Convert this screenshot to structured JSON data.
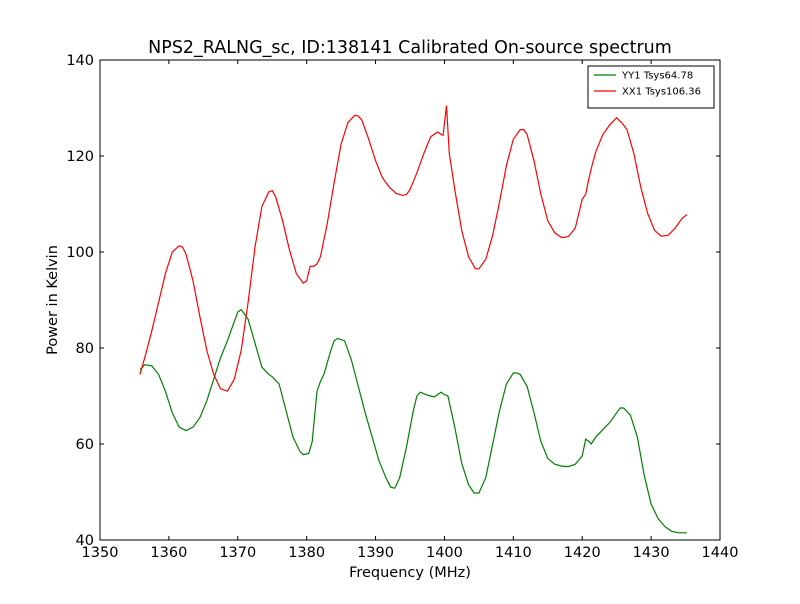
{
  "chart_data": {
    "type": "line",
    "title": "NPS2_RALNG_sc, ID:138141 Calibrated On-source spectrum",
    "xlabel": "Frequency (MHz)",
    "ylabel": "Power in Kelvin",
    "xlim": [
      1350,
      1440
    ],
    "ylim": [
      40,
      140
    ],
    "xticks": [
      1350,
      1360,
      1370,
      1380,
      1390,
      1400,
      1410,
      1420,
      1430,
      1440
    ],
    "yticks": [
      40,
      60,
      80,
      100,
      120,
      140
    ],
    "grid": false,
    "legend_position": "top-right",
    "series": [
      {
        "name": "YY1 Tsys64.78",
        "color": "#008000",
        "x": [
          1355.8,
          1356.5,
          1357.5,
          1358.5,
          1359.5,
          1360.5,
          1361.5,
          1362.5,
          1363.5,
          1364.5,
          1365.5,
          1366.5,
          1367.5,
          1368.5,
          1369.5,
          1370.0,
          1370.5,
          1371.5,
          1372.5,
          1373.5,
          1374.5,
          1375.0,
          1376.0,
          1377.0,
          1378.0,
          1379.0,
          1379.5,
          1380.3,
          1380.8,
          1381.5,
          1382.0,
          1382.5,
          1383.5,
          1384.0,
          1384.5,
          1385.5,
          1386.5,
          1387.5,
          1388.5,
          1389.5,
          1390.5,
          1391.5,
          1392.2,
          1392.8,
          1393.5,
          1394.5,
          1395.5,
          1396.0,
          1396.5,
          1397.5,
          1398.5,
          1399.0,
          1399.5,
          1400.0,
          1400.5,
          1401.5,
          1402.5,
          1403.5,
          1404.3,
          1405.0,
          1406.0,
          1407.0,
          1408.0,
          1409.0,
          1410.0,
          1410.5,
          1411.0,
          1412.0,
          1413.0,
          1414.0,
          1415.0,
          1416.0,
          1417.0,
          1418.0,
          1419.0,
          1420.0,
          1420.5,
          1421.0,
          1421.3,
          1422.0,
          1423.0,
          1424.0,
          1425.0,
          1425.5,
          1426.0,
          1427.0,
          1428.0,
          1429.0,
          1430.0,
          1431.0,
          1432.0,
          1433.0,
          1434.0,
          1435.2
        ],
        "values": [
          75.5,
          76.5,
          76.3,
          74.5,
          71.0,
          66.5,
          63.5,
          62.8,
          63.5,
          65.5,
          69.0,
          73.5,
          78.0,
          81.5,
          85.5,
          87.5,
          88.0,
          86.0,
          81.0,
          76.0,
          74.5,
          74.0,
          72.5,
          67.0,
          61.5,
          58.5,
          57.8,
          58.0,
          60.5,
          71.0,
          73.0,
          74.5,
          79.5,
          81.5,
          82.0,
          81.5,
          77.5,
          72.0,
          66.5,
          61.5,
          56.5,
          53.0,
          51.0,
          50.8,
          53.0,
          59.5,
          67.0,
          70.0,
          70.8,
          70.2,
          69.8,
          70.3,
          70.8,
          70.3,
          70.0,
          63.5,
          56.0,
          51.5,
          49.8,
          49.8,
          53.0,
          60.0,
          67.0,
          72.5,
          74.8,
          74.8,
          74.5,
          72.0,
          66.5,
          60.5,
          57.0,
          55.8,
          55.4,
          55.3,
          55.8,
          57.5,
          61.0,
          60.5,
          60.0,
          61.5,
          63.0,
          64.5,
          66.5,
          67.5,
          67.5,
          66.0,
          61.5,
          53.5,
          47.5,
          44.5,
          42.8,
          41.8,
          41.5,
          41.5
        ]
      },
      {
        "name": "XX1 Tsys106.36",
        "color": "#ff0000",
        "x": [
          1355.8,
          1356.5,
          1357.5,
          1358.5,
          1359.5,
          1360.5,
          1361.5,
          1362.0,
          1362.5,
          1363.5,
          1364.5,
          1365.5,
          1366.5,
          1367.5,
          1368.5,
          1369.5,
          1370.5,
          1371.5,
          1372.5,
          1373.5,
          1374.5,
          1375.0,
          1375.5,
          1376.5,
          1377.5,
          1378.5,
          1379.5,
          1380.0,
          1380.5,
          1381.0,
          1381.5,
          1382.0,
          1383.0,
          1384.0,
          1385.0,
          1386.0,
          1387.0,
          1387.5,
          1388.0,
          1389.0,
          1390.0,
          1391.0,
          1392.0,
          1393.0,
          1394.0,
          1394.5,
          1395.0,
          1396.0,
          1397.0,
          1398.0,
          1399.0,
          1399.5,
          1399.8,
          1400.3,
          1400.7,
          1401.5,
          1402.5,
          1403.5,
          1404.5,
          1405.0,
          1406.0,
          1407.0,
          1408.0,
          1409.0,
          1410.0,
          1411.0,
          1411.5,
          1412.0,
          1413.0,
          1414.0,
          1415.0,
          1416.0,
          1417.0,
          1418.0,
          1419.0,
          1420.0,
          1420.5,
          1421.0,
          1421.5,
          1422.0,
          1423.0,
          1424.0,
          1425.0,
          1425.3,
          1425.7,
          1426.5,
          1427.5,
          1428.5,
          1429.5,
          1430.5,
          1431.5,
          1432.5,
          1433.5,
          1434.5,
          1435.2
        ],
        "values": [
          74.5,
          78.0,
          83.5,
          89.5,
          95.5,
          100.0,
          101.3,
          101.0,
          99.5,
          94.0,
          86.5,
          79.5,
          74.5,
          71.5,
          71.0,
          73.5,
          79.5,
          89.5,
          101.0,
          109.5,
          112.5,
          112.8,
          111.5,
          106.5,
          100.5,
          95.5,
          93.5,
          94.0,
          97.0,
          97.0,
          97.5,
          99.0,
          106.0,
          114.5,
          122.5,
          127.0,
          128.5,
          128.3,
          127.5,
          123.5,
          119.0,
          115.5,
          113.5,
          112.2,
          111.8,
          112.0,
          113.0,
          116.5,
          120.5,
          124.0,
          125.0,
          124.5,
          124.3,
          130.5,
          120.5,
          113.0,
          104.5,
          99.0,
          96.5,
          96.5,
          98.5,
          103.5,
          110.5,
          118.0,
          123.5,
          125.5,
          125.5,
          124.5,
          119.0,
          112.0,
          106.5,
          104.0,
          103.0,
          103.2,
          105.0,
          111.0,
          112.0,
          115.5,
          118.5,
          121.0,
          124.5,
          126.5,
          128.0,
          127.5,
          127.0,
          125.5,
          120.5,
          113.5,
          108.0,
          104.5,
          103.3,
          103.5,
          105.0,
          107.0,
          107.8
        ]
      }
    ]
  }
}
